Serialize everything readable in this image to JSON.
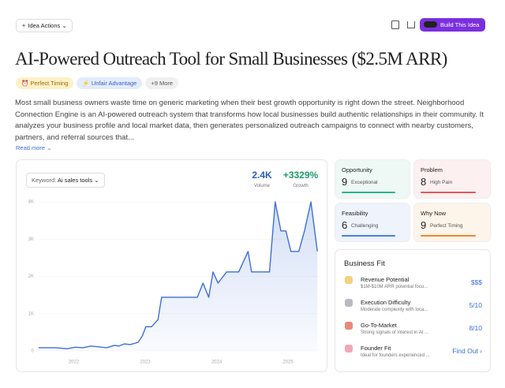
{
  "toolbar": {
    "actions_button": "Idea Actions",
    "build_button": "Build This Idea"
  },
  "header": {
    "title": "AI-Powered Outreach Tool for Small Businesses ($2.5M ARR)",
    "tags": [
      "Perfect Timing",
      "Unfair Advantage",
      "+9 More"
    ]
  },
  "description": {
    "text": "Most small business owners waste time on generic marketing when their best growth opportunity is right down the street. Neighborhood Connection Engine is an AI-powered outreach system that transforms how local businesses build authentic relationships in their community. It analyzes your business profile and local market data, then generates personalized outreach campaigns to connect with nearby customers, partners, and referral sources that...",
    "read_more": "Read more"
  },
  "trend": {
    "keyword_label": "Keyword:",
    "keyword": "Ai sales tools",
    "stats": [
      {
        "value": "2.4K",
        "label": "Volume"
      },
      {
        "value": "+3329%",
        "label": "Growth"
      }
    ]
  },
  "chart_data": {
    "type": "line",
    "color": "#3d6fd9",
    "x": [
      2021.51,
      2021.75,
      2021.91,
      2022.02,
      2022.13,
      2022.24,
      2022.35,
      2022.46,
      2022.57,
      2022.63,
      2022.71,
      2022.79,
      2022.9,
      2022.96,
      2023.01,
      2023.09,
      2023.18,
      2023.23,
      2023.73,
      2023.81,
      2023.89,
      2023.95,
      2024.02,
      2024.14,
      2024.31,
      2024.44,
      2024.49,
      2024.74,
      2024.82,
      2024.9,
      2024.97,
      2025.04,
      2025.15,
      2025.23,
      2025.32,
      2025.41
    ],
    "values": [
      85,
      85,
      60,
      100,
      85,
      130,
      110,
      85,
      150,
      130,
      190,
      170,
      230,
      400,
      650,
      650,
      840,
      1440,
      1440,
      1820,
      1440,
      2120,
      1820,
      2120,
      2120,
      2670,
      2120,
      2120,
      4000,
      3220,
      3220,
      2670,
      2670,
      3220,
      4000,
      2670
    ],
    "xlim": [
      2021.51,
      2025.43
    ],
    "xticks": [
      2022,
      2023,
      2024,
      2025
    ],
    "ylim": [
      0,
      4000
    ],
    "yticks": [
      0,
      {
        "value": 1000,
        "label": "1K"
      },
      {
        "value": 2000,
        "label": "2K"
      },
      {
        "value": 3000,
        "label": "3K"
      },
      {
        "value": 4000,
        "label": "4K"
      }
    ],
    "grid": true
  },
  "scores": [
    {
      "label": "Opportunity",
      "value": 9,
      "rating": "Exceptional",
      "color": "#2bb58f"
    },
    {
      "label": "Problem",
      "value": 8,
      "rating": "High Pain",
      "color": "#e05a5a"
    },
    {
      "label": "Feasibility",
      "value": 6,
      "rating": "Challenging",
      "color": "#4a7fe0"
    },
    {
      "label": "Why Now",
      "value": 9,
      "rating": "Perfect Timing",
      "color": "#ef8a2e"
    }
  ],
  "business_fit": {
    "title": "Business Fit",
    "rows": [
      {
        "title": "Revenue Potential",
        "subtitle": "$1M-$10M ARR potential focu...",
        "value": "$$$"
      },
      {
        "title": "Execution Difficulty",
        "subtitle": "Moderate complexity with loca...",
        "value": "5/10"
      },
      {
        "title": "Go-To-Market",
        "subtitle": "Strong signals of interest in AI ...",
        "value": "8/10"
      },
      {
        "title": "Founder Fit",
        "subtitle": "Ideal for founders experienced ...",
        "value": "Find Out"
      }
    ]
  }
}
